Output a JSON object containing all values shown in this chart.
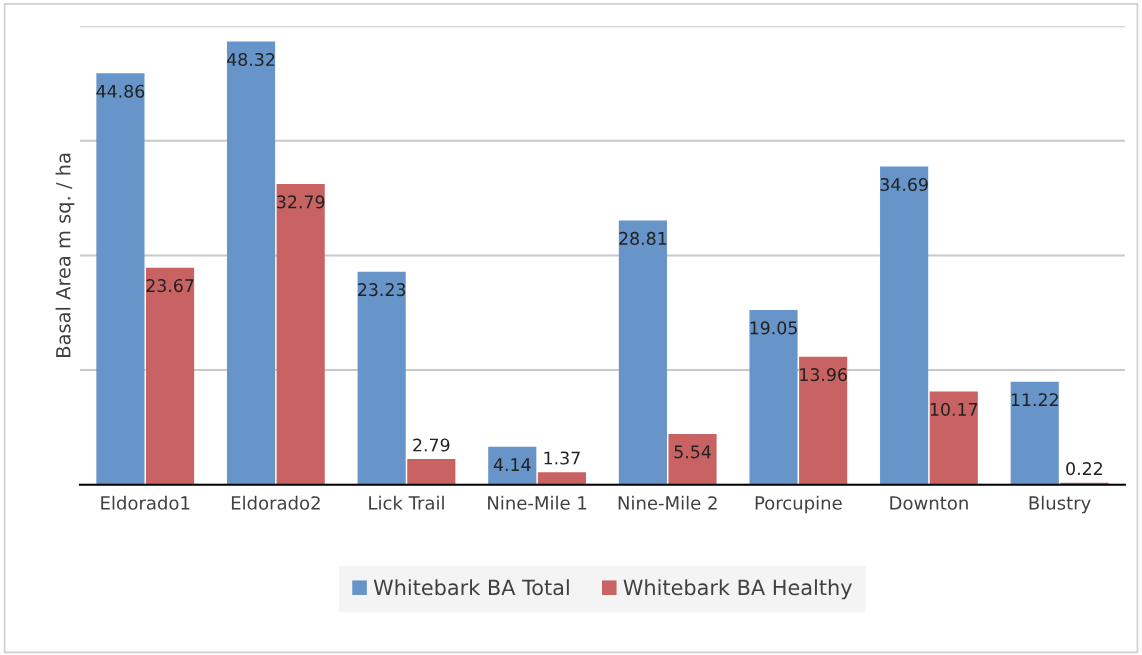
{
  "chart_data": {
    "type": "bar",
    "ylabel": "Basal Area m sq. / ha",
    "categories": [
      "Eldorado1",
      "Eldorado2",
      "Lick Trail",
      "Nine-Mile 1",
      "Nine-Mile 2",
      "Porcupine",
      "Downton",
      "Blustry"
    ],
    "series": [
      {
        "name": "Whitebark BA Total",
        "color": "#6794c9",
        "values": [
          44.86,
          48.32,
          23.23,
          4.14,
          28.81,
          19.05,
          34.69,
          11.22
        ]
      },
      {
        "name": "Whitebark BA Healthy",
        "color": "#c96363",
        "values": [
          23.67,
          32.79,
          2.79,
          1.37,
          5.54,
          13.96,
          10.17,
          0.22
        ]
      }
    ],
    "ylim": [
      0,
      50
    ],
    "yticks": [
      {
        "value": 0,
        "label": null
      },
      {
        "value": 12.5,
        "label": null
      },
      {
        "value": 25,
        "label": null
      },
      {
        "value": 37.5,
        "label": null
      },
      {
        "value": 50,
        "label": null
      }
    ],
    "tick_labels": "x",
    "grid": "y",
    "legend": "bottom",
    "data_labels": true
  }
}
